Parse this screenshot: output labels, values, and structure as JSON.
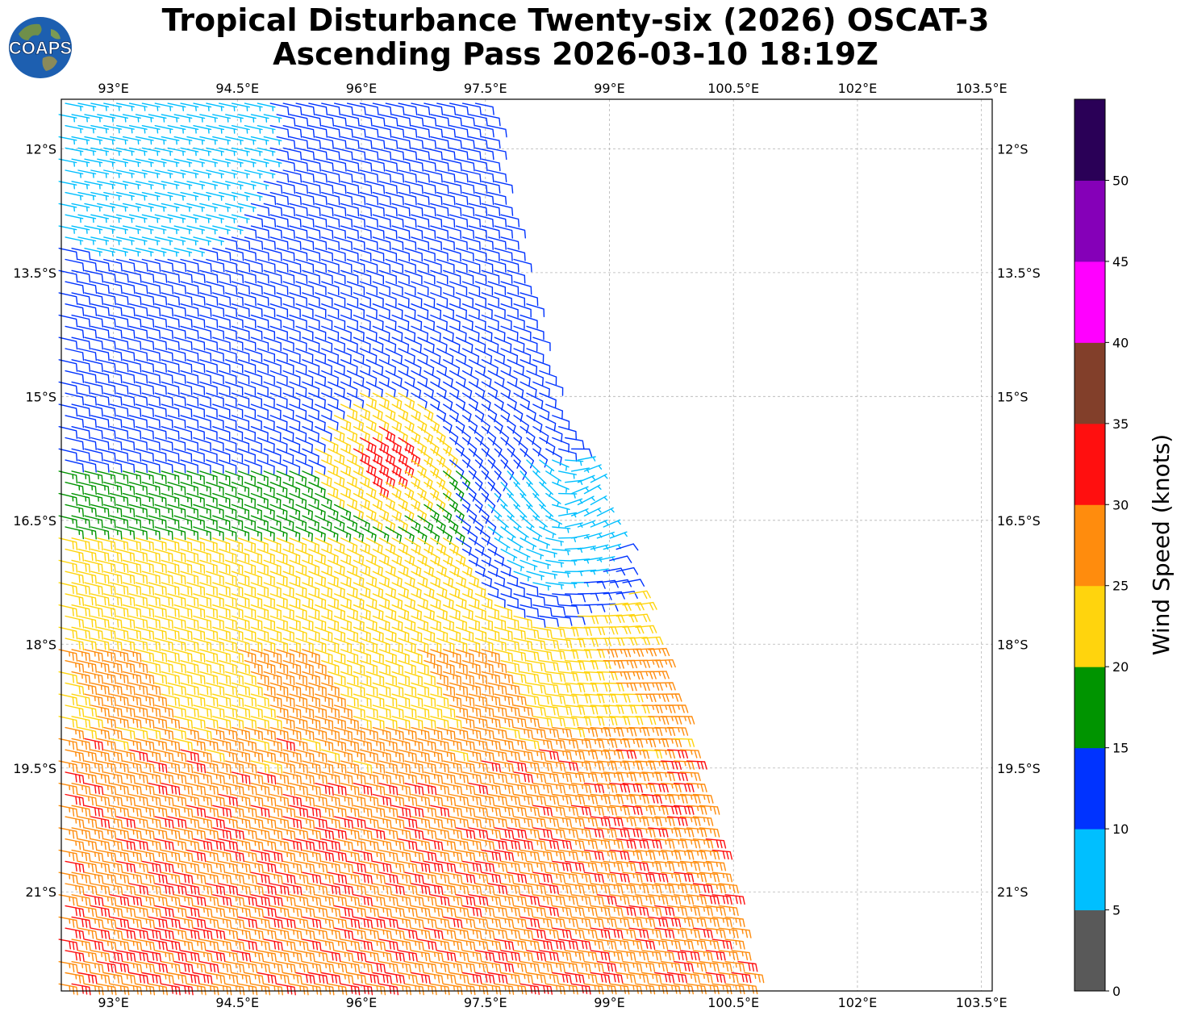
{
  "title": {
    "line1": "Tropical Disturbance Twenty-six (2026) OSCAT-3",
    "line2": "Ascending Pass 2026-03-10 18:19Z"
  },
  "logo": {
    "text": "COAPS"
  },
  "chart_data": {
    "type": "wind-barb-map",
    "x_ticks": [
      {
        "value": 93.0,
        "label": "93°E"
      },
      {
        "value": 94.5,
        "label": "94.5°E"
      },
      {
        "value": 96.0,
        "label": "96°E"
      },
      {
        "value": 97.5,
        "label": "97.5°E"
      },
      {
        "value": 99.0,
        "label": "99°E"
      },
      {
        "value": 100.5,
        "label": "100.5°E"
      },
      {
        "value": 102.0,
        "label": "102°E"
      },
      {
        "value": 103.5,
        "label": "103.5°E"
      }
    ],
    "y_ticks": [
      {
        "value": -12.0,
        "label": "12°S"
      },
      {
        "value": -13.5,
        "label": "13.5°S"
      },
      {
        "value": -15.0,
        "label": "15°S"
      },
      {
        "value": -16.5,
        "label": "16.5°S"
      },
      {
        "value": -18.0,
        "label": "18°S"
      },
      {
        "value": -19.5,
        "label": "19.5°S"
      },
      {
        "value": -21.0,
        "label": "21°S"
      }
    ],
    "xlim": [
      92.37,
      103.63
    ],
    "ylim": [
      -22.2,
      -11.4
    ],
    "colorbar": {
      "label": "Wind Speed (knots)",
      "ticks": [
        "0",
        "5",
        "10",
        "15",
        "20",
        "25",
        "30",
        "35",
        "40",
        "45",
        "50"
      ],
      "bins": [
        {
          "min": 0,
          "max": 5,
          "color": "#595959"
        },
        {
          "min": 5,
          "max": 10,
          "color": "#00bfff"
        },
        {
          "min": 10,
          "max": 15,
          "color": "#0033ff"
        },
        {
          "min": 15,
          "max": 20,
          "color": "#009400"
        },
        {
          "min": 20,
          "max": 25,
          "color": "#ffd40d"
        },
        {
          "min": 25,
          "max": 30,
          "color": "#ff8c0d"
        },
        {
          "min": 30,
          "max": 35,
          "color": "#ff0f0f"
        },
        {
          "min": 35,
          "max": 40,
          "color": "#823f2a"
        },
        {
          "min": 40,
          "max": 45,
          "color": "#ff00ff"
        },
        {
          "min": 45,
          "max": 50,
          "color": "#8500b8"
        },
        {
          "min": 50,
          "max": 55,
          "color": "#2a0057"
        }
      ]
    },
    "swath": {
      "east_edge": [
        {
          "lat": -11.4,
          "lon": 97.5
        },
        {
          "lat": -12.2,
          "lon": 97.6
        },
        {
          "lat": -13.5,
          "lon": 97.9
        },
        {
          "lat": -15.0,
          "lon": 98.3
        },
        {
          "lat": -16.5,
          "lon": 99.0
        },
        {
          "lat": -18.0,
          "lon": 99.5
        },
        {
          "lat": -19.5,
          "lon": 100.0
        },
        {
          "lat": -21.0,
          "lon": 100.4
        },
        {
          "lat": -22.2,
          "lon": 100.7
        }
      ]
    },
    "circulation": {
      "center_lat": -16.5,
      "center_lon": 98.3,
      "calm_lat": -11.8,
      "calm_lon": 93.3,
      "max_wind_lat": -15.7,
      "max_wind_lon": 96.2
    }
  }
}
